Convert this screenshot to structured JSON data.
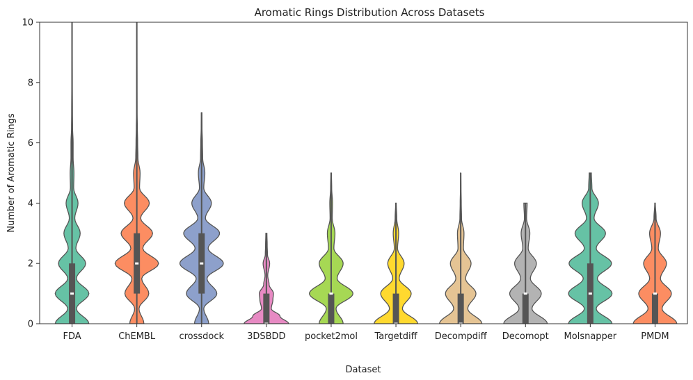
{
  "chart_data": {
    "type": "violin",
    "title": "Aromatic Rings Distribution Across Datasets",
    "xlabel": "Dataset",
    "ylabel": "Number of Aromatic Rings",
    "ylim": [
      0,
      10
    ],
    "yticks": [
      0,
      2,
      4,
      6,
      8,
      10
    ],
    "grid": false,
    "categories": [
      "FDA",
      "ChEMBL",
      "crossdock",
      "3DSBDD",
      "pocket2mol",
      "Targetdiff",
      "Decompdiff",
      "Decomopt",
      "Molsnapper",
      "PMDM"
    ],
    "series": [
      {
        "color": "#66c2a5",
        "min": 0,
        "q1": 0,
        "median": 1,
        "q3": 2,
        "max": 10,
        "density": [
          [
            0,
            0.62
          ],
          [
            0.5,
            0.16
          ],
          [
            1,
            0.62
          ],
          [
            1.5,
            0.16
          ],
          [
            2,
            0.5
          ],
          [
            2.5,
            0.14
          ],
          [
            3,
            0.3
          ],
          [
            3.5,
            0.1
          ],
          [
            4,
            0.22
          ],
          [
            4.5,
            0.06
          ],
          [
            5,
            0.07
          ],
          [
            5.5,
            0.04
          ],
          [
            6,
            0.04
          ],
          [
            6.5,
            0.02
          ],
          [
            7,
            0.015
          ],
          [
            8,
            0.01
          ],
          [
            9,
            0.008
          ],
          [
            10,
            0.005
          ]
        ]
      },
      {
        "color": "#fc8d62",
        "min": 0,
        "q1": 1,
        "median": 2,
        "q3": 3,
        "max": 10,
        "density": [
          [
            0,
            0.26
          ],
          [
            0.5,
            0.08
          ],
          [
            1,
            0.44
          ],
          [
            1.5,
            0.18
          ],
          [
            2,
            0.8
          ],
          [
            2.5,
            0.22
          ],
          [
            3,
            0.58
          ],
          [
            3.5,
            0.14
          ],
          [
            4,
            0.46
          ],
          [
            4.5,
            0.1
          ],
          [
            5,
            0.12
          ],
          [
            5.5,
            0.04
          ],
          [
            6,
            0.03
          ],
          [
            6.5,
            0.02
          ],
          [
            7,
            0.01
          ],
          [
            8,
            0.008
          ],
          [
            9,
            0.006
          ],
          [
            10,
            0.004
          ]
        ]
      },
      {
        "color": "#8da0cb",
        "min": 0,
        "q1": 1,
        "median": 2,
        "q3": 3,
        "max": 7,
        "density": [
          [
            0,
            0.26
          ],
          [
            0.5,
            0.08
          ],
          [
            1,
            0.56
          ],
          [
            1.5,
            0.2
          ],
          [
            2,
            0.8
          ],
          [
            2.5,
            0.24
          ],
          [
            3,
            0.66
          ],
          [
            3.5,
            0.14
          ],
          [
            4,
            0.36
          ],
          [
            4.5,
            0.08
          ],
          [
            5,
            0.12
          ],
          [
            5.5,
            0.04
          ],
          [
            6,
            0.03
          ],
          [
            6.5,
            0.015
          ],
          [
            7,
            0.01
          ]
        ]
      },
      {
        "color": "#e78ac3",
        "min": 0,
        "q1": 0,
        "median": 0,
        "q3": 1,
        "max": 3,
        "density": [
          [
            0,
            0.82
          ],
          [
            0.25,
            0.5
          ],
          [
            0.5,
            0.18
          ],
          [
            0.8,
            0.24
          ],
          [
            1,
            0.26
          ],
          [
            1.3,
            0.1
          ],
          [
            1.6,
            0.05
          ],
          [
            2,
            0.12
          ],
          [
            2.3,
            0.04
          ],
          [
            2.6,
            0.03
          ],
          [
            3,
            0.02
          ]
        ]
      },
      {
        "color": "#a6d854",
        "min": 0,
        "q1": 0,
        "median": 1,
        "q3": 1,
        "max": 5,
        "density": [
          [
            0,
            0.44
          ],
          [
            0.5,
            0.18
          ],
          [
            1,
            0.8
          ],
          [
            1.5,
            0.22
          ],
          [
            2,
            0.44
          ],
          [
            2.5,
            0.1
          ],
          [
            3,
            0.14
          ],
          [
            3.5,
            0.04
          ],
          [
            4,
            0.05
          ],
          [
            4.5,
            0.02
          ],
          [
            5,
            0.01
          ]
        ]
      },
      {
        "color": "#ffd92f",
        "min": 0,
        "q1": 0,
        "median": 0,
        "q3": 1,
        "max": 4,
        "density": [
          [
            0,
            0.8
          ],
          [
            0.5,
            0.24
          ],
          [
            1,
            0.56
          ],
          [
            1.5,
            0.12
          ],
          [
            2,
            0.3
          ],
          [
            2.5,
            0.06
          ],
          [
            3,
            0.1
          ],
          [
            3.5,
            0.03
          ],
          [
            4,
            0.01
          ]
        ]
      },
      {
        "color": "#e5c494",
        "min": 0,
        "q1": 0,
        "median": 0,
        "q3": 1,
        "max": 5,
        "density": [
          [
            0,
            0.78
          ],
          [
            0.5,
            0.26
          ],
          [
            1,
            0.56
          ],
          [
            1.5,
            0.18
          ],
          [
            2,
            0.38
          ],
          [
            2.5,
            0.1
          ],
          [
            3,
            0.12
          ],
          [
            3.5,
            0.03
          ],
          [
            4,
            0.02
          ],
          [
            4.5,
            0.01
          ],
          [
            5,
            0.006
          ]
        ]
      },
      {
        "color": "#b3b3b3",
        "min": 0,
        "q1": 0,
        "median": 1,
        "q3": 1,
        "max": 4,
        "density": [
          [
            0,
            0.8
          ],
          [
            0.5,
            0.24
          ],
          [
            1,
            0.58
          ],
          [
            1.5,
            0.18
          ],
          [
            2,
            0.4
          ],
          [
            2.5,
            0.1
          ],
          [
            3,
            0.16
          ],
          [
            3.5,
            0.04
          ],
          [
            4,
            0.06
          ]
        ]
      },
      {
        "color": "#66c2a5",
        "min": 0,
        "q1": 0,
        "median": 1,
        "q3": 2,
        "max": 5,
        "density": [
          [
            0,
            0.8
          ],
          [
            0.5,
            0.22
          ],
          [
            1,
            0.8
          ],
          [
            1.5,
            0.26
          ],
          [
            2,
            0.78
          ],
          [
            2.5,
            0.22
          ],
          [
            3,
            0.56
          ],
          [
            3.5,
            0.14
          ],
          [
            4,
            0.3
          ],
          [
            4.5,
            0.06
          ],
          [
            5,
            0.04
          ]
        ]
      },
      {
        "color": "#fc8d62",
        "min": 0,
        "q1": 0,
        "median": 1,
        "q3": 1,
        "max": 4,
        "density": [
          [
            0,
            0.8
          ],
          [
            0.5,
            0.26
          ],
          [
            1,
            0.6
          ],
          [
            1.5,
            0.2
          ],
          [
            2,
            0.42
          ],
          [
            2.5,
            0.12
          ],
          [
            3,
            0.2
          ],
          [
            3.5,
            0.04
          ],
          [
            4,
            0.01
          ]
        ]
      }
    ]
  }
}
